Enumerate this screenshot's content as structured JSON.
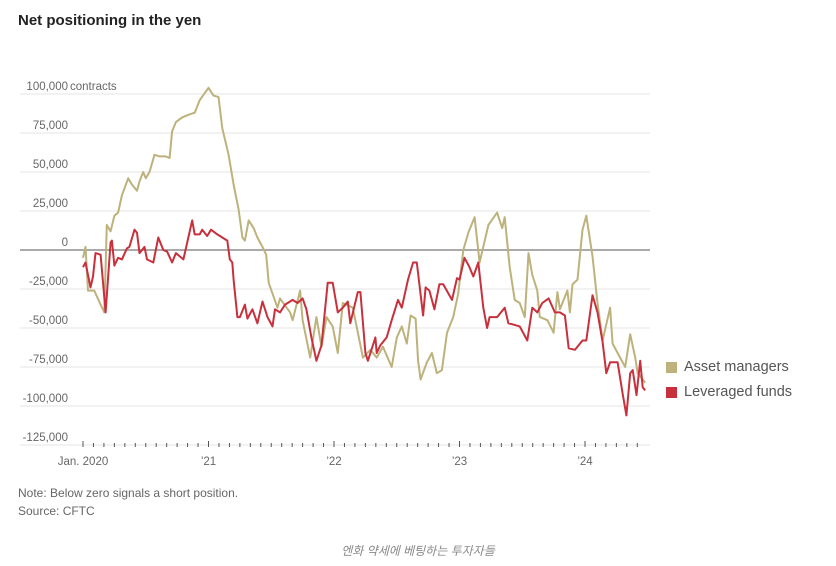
{
  "chart_data": {
    "type": "line",
    "title": "Net positioning in the yen",
    "ylabel_unit": "contracts",
    "ylim": [
      -125000,
      100000
    ],
    "yticks": [
      100000,
      75000,
      50000,
      25000,
      0,
      -25000,
      -50000,
      -75000,
      -100000,
      -125000
    ],
    "ytick_labels": [
      "100,000",
      "75,000",
      "50,000",
      "25,000",
      "0",
      "-25,000",
      "-50,000",
      "-75,000",
      "-100,000",
      "-125,000"
    ],
    "xlim": [
      2020.0,
      2024.48
    ],
    "xticks": [
      2020,
      2021,
      2022,
      2023,
      2024
    ],
    "xtick_labels": [
      "Jan. 2020",
      "’21",
      "’22",
      "’23",
      "’24"
    ],
    "legend_position": "right",
    "series": [
      {
        "name": "Asset managers",
        "color": "#bdb27c",
        "x": [
          2020.0,
          2020.02,
          2020.04,
          2020.09,
          2020.14,
          2020.17,
          2020.19,
          2020.22,
          2020.25,
          2020.28,
          2020.31,
          2020.36,
          2020.39,
          2020.43,
          2020.45,
          2020.48,
          2020.5,
          2020.53,
          2020.57,
          2020.61,
          2020.66,
          2020.69,
          2020.71,
          2020.74,
          2020.79,
          2020.85,
          2020.89,
          2020.93,
          2021.0,
          2021.04,
          2021.08,
          2021.11,
          2021.16,
          2021.2,
          2021.24,
          2021.27,
          2021.29,
          2021.32,
          2021.36,
          2021.39,
          2021.43,
          2021.46,
          2021.48,
          2021.55,
          2021.57,
          2021.65,
          2021.67,
          2021.73,
          2021.75,
          2021.81,
          2021.86,
          2021.9,
          2021.94,
          2021.99,
          2022.03,
          2022.07,
          2022.15,
          2022.23,
          2022.29,
          2022.34,
          2022.39,
          2022.46,
          2022.5,
          2022.54,
          2022.58,
          2022.61,
          2022.65,
          2022.67,
          2022.69,
          2022.74,
          2022.78,
          2022.82,
          2022.86,
          2022.9,
          2022.95,
          2022.99,
          2023.03,
          2023.07,
          2023.12,
          2023.16,
          2023.23,
          2023.3,
          2023.34,
          2023.36,
          2023.4,
          2023.44,
          2023.48,
          2023.52,
          2023.55,
          2023.58,
          2023.62,
          2023.64,
          2023.7,
          2023.75,
          2023.78,
          2023.8,
          2023.86,
          2023.88,
          2023.9,
          2023.94,
          2023.98,
          2024.01,
          2024.06,
          2024.1,
          2024.14,
          2024.2,
          2024.22,
          2024.28,
          2024.32,
          2024.36,
          2024.4,
          2024.42,
          2024.48
        ],
        "values": [
          -5000,
          2000,
          -26000,
          -26000,
          -35000,
          -40000,
          16000,
          12000,
          22000,
          24000,
          35000,
          46000,
          42000,
          38000,
          44000,
          50000,
          46000,
          50000,
          61000,
          60000,
          60000,
          59000,
          76000,
          82000,
          85000,
          87000,
          88000,
          96000,
          104000,
          99000,
          98000,
          78000,
          61000,
          42000,
          26000,
          8000,
          6000,
          19000,
          14000,
          8000,
          2000,
          -3000,
          -21000,
          -37000,
          -31000,
          -40000,
          -45000,
          -26000,
          -45000,
          -69000,
          -43000,
          -62000,
          -43000,
          -49000,
          -66000,
          -34000,
          -37000,
          -69000,
          -64000,
          -69000,
          -62000,
          -75000,
          -56000,
          -49000,
          -60000,
          -42000,
          -44000,
          -71000,
          -83000,
          -72000,
          -66000,
          -79000,
          -77000,
          -53000,
          -43000,
          -28000,
          0,
          11000,
          21000,
          -8000,
          16000,
          24000,
          14000,
          21000,
          -11000,
          -32000,
          -34000,
          -43000,
          -2000,
          -16000,
          -26000,
          -43000,
          -45000,
          -53000,
          -27000,
          -38000,
          -26000,
          -40000,
          -22000,
          -19000,
          13000,
          22000,
          -4000,
          -34000,
          -58000,
          -37000,
          -60000,
          -69000,
          -75000,
          -54000,
          -69000,
          -79000,
          -85000
        ]
      },
      {
        "name": "Leveraged funds",
        "color": "#c8303c",
        "x": [
          2020.0,
          2020.02,
          2020.06,
          2020.08,
          2020.1,
          2020.14,
          2020.18,
          2020.22,
          2020.23,
          2020.25,
          2020.28,
          2020.31,
          2020.35,
          2020.37,
          2020.41,
          2020.43,
          2020.45,
          2020.49,
          2020.51,
          2020.56,
          2020.6,
          2020.64,
          2020.67,
          2020.71,
          2020.74,
          2020.8,
          2020.87,
          2020.89,
          2020.93,
          2020.95,
          2020.99,
          2021.02,
          2021.07,
          2021.11,
          2021.15,
          2021.17,
          2021.19,
          2021.2,
          2021.23,
          2021.25,
          2021.29,
          2021.31,
          2021.35,
          2021.39,
          2021.43,
          2021.47,
          2021.51,
          2021.53,
          2021.57,
          2021.61,
          2021.67,
          2021.71,
          2021.75,
          2021.78,
          2021.82,
          2021.86,
          2021.9,
          2021.95,
          2021.99,
          2022.03,
          2022.07,
          2022.11,
          2022.13,
          2022.19,
          2022.21,
          2022.25,
          2022.27,
          2022.33,
          2022.34,
          2022.37,
          2022.42,
          2022.46,
          2022.51,
          2022.54,
          2022.59,
          2022.63,
          2022.66,
          2022.71,
          2022.73,
          2022.76,
          2022.8,
          2022.84,
          2022.87,
          2022.94,
          2022.98,
          2023.0,
          2023.04,
          2023.08,
          2023.11,
          2023.15,
          2023.19,
          2023.22,
          2023.24,
          2023.3,
          2023.36,
          2023.39,
          2023.44,
          2023.48,
          2023.54,
          2023.58,
          2023.62,
          2023.66,
          2023.71,
          2023.76,
          2023.8,
          2023.84,
          2023.87,
          2023.92,
          2023.98,
          2024.01,
          2024.06,
          2024.1,
          2024.14,
          2024.17,
          2024.2,
          2024.26,
          2024.3,
          2024.33,
          2024.36,
          2024.38,
          2024.41,
          2024.44,
          2024.46,
          2024.48
        ],
        "values": [
          -11000,
          -8000,
          -24000,
          -17000,
          -2000,
          -3000,
          -40000,
          5000,
          6000,
          -10000,
          -5000,
          -6000,
          1000,
          2000,
          13000,
          11000,
          -2000,
          2000,
          -6000,
          -8000,
          8000,
          0,
          -1000,
          -8000,
          -2000,
          -6000,
          19000,
          10000,
          10000,
          13000,
          9000,
          13000,
          10000,
          8000,
          6000,
          -6000,
          -8000,
          -19000,
          -43000,
          -43000,
          -35000,
          -44000,
          -38000,
          -47000,
          -33000,
          -43000,
          -49000,
          -38000,
          -40000,
          -35000,
          -32000,
          -34000,
          -31000,
          -38000,
          -56000,
          -71000,
          -61000,
          -21000,
          -21000,
          -40000,
          -37000,
          -33000,
          -47000,
          -27000,
          -27000,
          -66000,
          -71000,
          -56000,
          -66000,
          -61000,
          -56000,
          -45000,
          -32000,
          -37000,
          -19000,
          -8000,
          -8000,
          -42000,
          -24000,
          -26000,
          -38000,
          -22000,
          -22000,
          -32000,
          -18000,
          -19000,
          -5000,
          -11000,
          -17000,
          -8000,
          -37000,
          -50000,
          -43000,
          -43000,
          -37000,
          -47000,
          -48000,
          -49000,
          -58000,
          -37000,
          -40000,
          -34000,
          -31000,
          -40000,
          -40000,
          -42000,
          -63000,
          -64000,
          -58000,
          -58000,
          -29000,
          -40000,
          -59000,
          -79000,
          -72000,
          -72000,
          -92000,
          -106000,
          -79000,
          -77000,
          -93000,
          -71000,
          -88000,
          -90000
        ]
      }
    ]
  },
  "notes": {
    "note": "Note: Below zero signals a short position.",
    "source": "Source: CFTC"
  },
  "caption": "엔화 약세에 베팅하는 투자자들"
}
